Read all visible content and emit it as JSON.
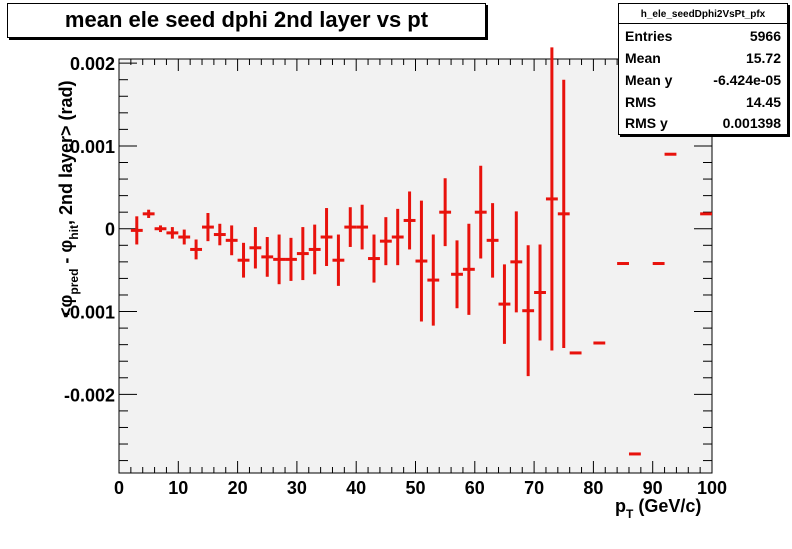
{
  "title": "mean ele seed dphi 2nd layer vs pt",
  "stats": {
    "name": "h_ele_seedDphi2VsPt_pfx",
    "rows": [
      {
        "key": "Entries",
        "value": "5966"
      },
      {
        "key": "Mean",
        "value": "15.72"
      },
      {
        "key": "Mean y",
        "value": "-6.424e-05"
      },
      {
        "key": "RMS",
        "value": "14.45"
      },
      {
        "key": "RMS y",
        "value": "0.001398"
      }
    ]
  },
  "colors": {
    "marker": "#e8120c",
    "frame_bg": "#f2f2f2",
    "axis": "#000000"
  },
  "chart_data": {
    "type": "scatter",
    "title": "mean ele seed dphi 2nd layer vs pt",
    "xlabel": "p_T (GeV/c)",
    "ylabel": "<φ_pred - φ_hit, 2nd layer> (rad)",
    "xlim": [
      0,
      100
    ],
    "ylim": [
      -0.00295,
      0.00205
    ],
    "x_ticks": [
      0,
      10,
      20,
      30,
      40,
      50,
      60,
      70,
      80,
      90,
      100
    ],
    "x_tick_labels": [
      "0",
      "10",
      "20",
      "30",
      "40",
      "50",
      "60",
      "70",
      "80",
      "90",
      "100"
    ],
    "y_ticks": [
      -0.002,
      -0.001,
      0,
      0.001,
      0.002
    ],
    "y_tick_labels": [
      "-0.002",
      "-0.001",
      "0",
      "0.001",
      "0.002"
    ],
    "grid": false,
    "legend": "none",
    "bin_width": 2,
    "series": [
      {
        "points": [
          {
            "x": 3,
            "y": -2e-05,
            "err": 0.00017
          },
          {
            "x": 5,
            "y": 0.00018,
            "err": 5e-05
          },
          {
            "x": 7,
            "y": 0.0,
            "err": 4e-05
          },
          {
            "x": 9,
            "y": -5e-05,
            "err": 7e-05
          },
          {
            "x": 11,
            "y": -0.0001,
            "err": 9e-05
          },
          {
            "x": 13,
            "y": -0.00025,
            "err": 0.00012
          },
          {
            "x": 15,
            "y": 2e-05,
            "err": 0.00017
          },
          {
            "x": 17,
            "y": -7e-05,
            "err": 0.00013
          },
          {
            "x": 19,
            "y": -0.00014,
            "err": 0.00018
          },
          {
            "x": 21,
            "y": -0.00038,
            "err": 0.00021
          },
          {
            "x": 23,
            "y": -0.00023,
            "err": 0.00025
          },
          {
            "x": 25,
            "y": -0.00034,
            "err": 0.00024
          },
          {
            "x": 27,
            "y": -0.00037,
            "err": 0.0003
          },
          {
            "x": 29,
            "y": -0.00037,
            "err": 0.00026
          },
          {
            "x": 31,
            "y": -0.0003,
            "err": 0.00032
          },
          {
            "x": 33,
            "y": -0.00025,
            "err": 0.0003
          },
          {
            "x": 35,
            "y": -0.0001,
            "err": 0.00035
          },
          {
            "x": 37,
            "y": -0.00038,
            "err": 0.00031
          },
          {
            "x": 39,
            "y": 2e-05,
            "err": 0.00024
          },
          {
            "x": 41,
            "y": 2e-05,
            "err": 0.00027
          },
          {
            "x": 43,
            "y": -0.00036,
            "err": 0.00029
          },
          {
            "x": 45,
            "y": -0.00015,
            "err": 0.00029
          },
          {
            "x": 47,
            "y": -0.0001,
            "err": 0.00034
          },
          {
            "x": 49,
            "y": 0.0001,
            "err": 0.00035
          },
          {
            "x": 51,
            "y": -0.00039,
            "err": 0.00073
          },
          {
            "x": 53,
            "y": -0.00062,
            "err": 0.00055
          },
          {
            "x": 55,
            "y": 0.0002,
            "err": 0.00041
          },
          {
            "x": 57,
            "y": -0.00055,
            "err": 0.00041
          },
          {
            "x": 59,
            "y": -0.00049,
            "err": 0.00055
          },
          {
            "x": 61,
            "y": 0.0002,
            "err": 0.00056
          },
          {
            "x": 63,
            "y": -0.00014,
            "err": 0.00045
          },
          {
            "x": 65,
            "y": -0.00091,
            "err": 0.00048
          },
          {
            "x": 67,
            "y": -0.0004,
            "err": 0.00061
          },
          {
            "x": 69,
            "y": -0.00099,
            "err": 0.00079
          },
          {
            "x": 71,
            "y": -0.00077,
            "err": 0.00058
          },
          {
            "x": 73,
            "y": 0.00036,
            "err": 0.00183
          },
          {
            "x": 75,
            "y": 0.00018,
            "err": 0.00162
          },
          {
            "x": 77,
            "y": -0.0015,
            "err": 0.0
          },
          {
            "x": 81,
            "y": -0.00138,
            "err": 0.0
          },
          {
            "x": 85,
            "y": -0.00042,
            "err": 0.0
          },
          {
            "x": 87,
            "y": -0.00272,
            "err": 0.0
          },
          {
            "x": 91,
            "y": -0.00042,
            "err": 0.0
          },
          {
            "x": 93,
            "y": 0.0009,
            "err": 0.0
          },
          {
            "x": 99,
            "y": 0.00018,
            "err": 0.0
          }
        ]
      }
    ]
  }
}
